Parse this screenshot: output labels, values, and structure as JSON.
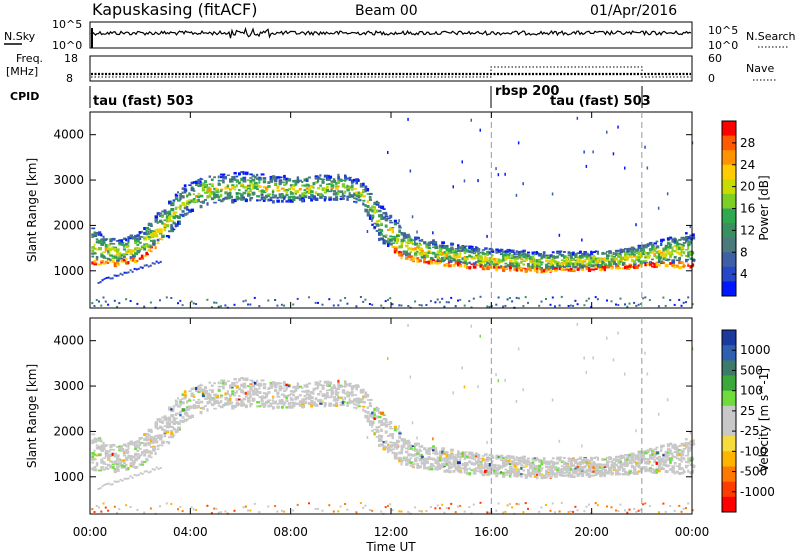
{
  "header": {
    "station": "Kapuskasing (fitACF)",
    "beam": "Beam 00",
    "date": "01/Apr/2016"
  },
  "noise_panel": {
    "left_label": "N.Sky",
    "right_label": "N.Search",
    "left_ticks": [
      "10^5",
      "10^0"
    ],
    "right_ticks": [
      "10^5",
      "10^0"
    ]
  },
  "freq_panel": {
    "left_label_1": "Freq.",
    "left_label_2": "[MHz]",
    "right_label": "Nave",
    "left_ticks": [
      "18",
      "8"
    ],
    "right_ticks": [
      "60",
      "0"
    ]
  },
  "cpid_panel": {
    "label": "CPID",
    "segments": [
      {
        "name": "tau (fast) 503",
        "start_hour": 0,
        "end_hour": 16
      },
      {
        "name": "rbsp 200",
        "start_hour": 16,
        "end_hour": 22
      },
      {
        "name": "tau (fast) 503",
        "start_hour": 16,
        "end_hour": 22
      }
    ]
  },
  "power_colorbar": {
    "label": "Power [dB]",
    "ticks": [
      "28",
      "24",
      "20",
      "16",
      "12",
      "8",
      "4"
    ],
    "colors": [
      "#ff0000",
      "#ff5a00",
      "#ff9400",
      "#ffcc00",
      "#c8dc00",
      "#7ecf24",
      "#2fa84f",
      "#3a8f60",
      "#4c7a7c",
      "#3f5fa4",
      "#2647c8",
      "#0018ff"
    ]
  },
  "velocity_colorbar": {
    "label": "Velocity [m s^-1]",
    "ticks": [
      "1000",
      "500",
      "100",
      "25",
      "-25",
      "-100",
      "-500",
      "-1000"
    ],
    "colors": [
      "#1a3a9e",
      "#2e5fb0",
      "#3d7a6a",
      "#3aa83a",
      "#6edc3c",
      "#c8c8c8",
      "#c8c8c8",
      "#f5dc3c",
      "#ffb400",
      "#ff7800",
      "#ff3c00",
      "#ff0000"
    ]
  },
  "axes": {
    "ylabel": "Slant Range [km]",
    "xlabel": "Time UT",
    "y_ticks": [
      "4000",
      "3000",
      "2000",
      "1000"
    ],
    "x_ticks": [
      "00:00",
      "04:00",
      "08:00",
      "12:00",
      "16:00",
      "20:00",
      "00:00"
    ]
  },
  "chart_data": {
    "type": "heatmap",
    "x_unit": "hours UT",
    "xlim": [
      0,
      24
    ],
    "ylim": [
      180,
      4500
    ],
    "mode_change_hours": [
      16,
      22
    ],
    "backscatter_band": [
      {
        "t": 0.0,
        "lo": 1150,
        "hi": 2000
      },
      {
        "t": 1.0,
        "lo": 1150,
        "hi": 1700
      },
      {
        "t": 2.0,
        "lo": 1250,
        "hi": 1900
      },
      {
        "t": 3.0,
        "lo": 1700,
        "hi": 2500
      },
      {
        "t": 3.7,
        "lo": 2200,
        "hi": 2900
      },
      {
        "t": 4.5,
        "lo": 2500,
        "hi": 3100
      },
      {
        "t": 6.0,
        "lo": 2550,
        "hi": 3200
      },
      {
        "t": 8.0,
        "lo": 2550,
        "hi": 3100
      },
      {
        "t": 10.0,
        "lo": 2600,
        "hi": 3150
      },
      {
        "t": 10.8,
        "lo": 2500,
        "hi": 3000
      },
      {
        "t": 11.5,
        "lo": 1700,
        "hi": 2500
      },
      {
        "t": 12.5,
        "lo": 1250,
        "hi": 1900
      },
      {
        "t": 14.0,
        "lo": 1150,
        "hi": 1650
      },
      {
        "t": 16.0,
        "lo": 1050,
        "hi": 1500
      },
      {
        "t": 18.0,
        "lo": 1000,
        "hi": 1450
      },
      {
        "t": 20.0,
        "lo": 1050,
        "hi": 1450
      },
      {
        "t": 22.0,
        "lo": 1100,
        "hi": 1600
      },
      {
        "t": 24.0,
        "lo": 1100,
        "hi": 1900
      }
    ]
  }
}
